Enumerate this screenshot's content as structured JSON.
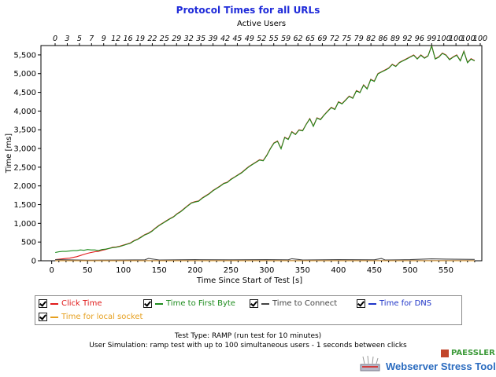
{
  "chart_data": {
    "type": "line",
    "title": "Protocol Times for all URLs",
    "top_axis_label": "Active Users",
    "top_ticks": [
      "0",
      "3",
      "5",
      "7",
      "9",
      "12",
      "16",
      "19",
      "22",
      "25",
      "29",
      "32",
      "35",
      "39",
      "42",
      "45",
      "49",
      "52",
      "55",
      "59",
      "62",
      "65",
      "69",
      "72",
      "75",
      "79",
      "82",
      "86",
      "89",
      "92",
      "96",
      "99",
      "100",
      "100",
      "100",
      "100"
    ],
    "xlabel": "Time Since Start of Test [s]",
    "ylabel": "Time [ms]",
    "xlim": [
      -15,
      600
    ],
    "ylim": [
      0,
      5750
    ],
    "xticks": [
      0,
      50,
      100,
      150,
      200,
      250,
      300,
      350,
      400,
      450,
      500,
      550
    ],
    "yticks": [
      0,
      500,
      1000,
      1500,
      2000,
      2500,
      3000,
      3500,
      4000,
      4500,
      5000,
      5500
    ],
    "ytick_labels": [
      "0",
      "500",
      "1,000",
      "1,500",
      "2,000",
      "2,500",
      "3,000",
      "3,500",
      "4,000",
      "4,500",
      "5,000",
      "5,500"
    ],
    "grid": false,
    "series": [
      {
        "name": "Click Time",
        "color": "#e01b1b",
        "x": [
          5,
          10,
          15,
          20,
          25,
          30,
          35,
          40,
          45,
          50,
          55,
          60,
          65,
          70,
          75,
          80,
          85,
          90,
          95,
          100,
          105,
          110,
          115,
          120,
          125,
          130,
          135,
          140,
          145,
          150,
          155,
          160,
          165,
          170,
          175,
          180,
          185,
          190,
          195,
          200,
          205,
          210,
          215,
          220,
          225,
          230,
          235,
          240,
          245,
          250,
          255,
          260,
          265,
          270,
          275,
          280,
          285,
          290,
          295,
          300,
          305,
          310,
          315,
          320,
          325,
          330,
          335,
          340,
          345,
          350,
          355,
          360,
          365,
          370,
          375,
          380,
          385,
          390,
          395,
          400,
          405,
          410,
          415,
          420,
          425,
          430,
          435,
          440,
          445,
          450,
          455,
          460,
          465,
          470,
          475,
          480,
          485,
          490,
          495,
          500,
          505,
          510,
          515,
          520,
          525,
          530,
          535,
          540,
          545,
          550,
          555,
          560,
          565,
          570,
          575,
          580,
          585,
          590
        ],
        "values": [
          30,
          40,
          50,
          60,
          70,
          90,
          110,
          140,
          170,
          200,
          220,
          240,
          250,
          280,
          300,
          330,
          360,
          370,
          390,
          420,
          450,
          480,
          540,
          580,
          640,
          700,
          740,
          800,
          880,
          950,
          1010,
          1070,
          1130,
          1180,
          1260,
          1320,
          1400,
          1480,
          1550,
          1580,
          1600,
          1680,
          1740,
          1800,
          1880,
          1940,
          2000,
          2070,
          2100,
          2180,
          2240,
          2300,
          2360,
          2440,
          2520,
          2580,
          2640,
          2700,
          2680,
          2820,
          3000,
          3150,
          3200,
          3000,
          3300,
          3250,
          3450,
          3380,
          3500,
          3480,
          3650,
          3800,
          3600,
          3820,
          3780,
          3900,
          4000,
          4100,
          4050,
          4250,
          4200,
          4300,
          4400,
          4350,
          4550,
          4500,
          4700,
          4600,
          4850,
          4800,
          5000,
          5050,
          5100,
          5150,
          5250,
          5200,
          5300,
          5350,
          5400,
          5450,
          5500,
          5400,
          5500,
          5420,
          5480,
          5750,
          5400,
          5450,
          5550,
          5500,
          5380,
          5450,
          5500,
          5350,
          5600,
          5300,
          5400,
          5350
        ]
      },
      {
        "name": "Time to First Byte",
        "color": "#1e8c1e",
        "x": [
          5,
          10,
          15,
          20,
          25,
          30,
          35,
          40,
          45,
          50,
          55,
          60,
          65,
          70,
          75,
          80,
          85,
          90,
          95,
          100,
          105,
          110,
          115,
          120,
          125,
          130,
          135,
          140,
          145,
          150,
          155,
          160,
          165,
          170,
          175,
          180,
          185,
          190,
          195,
          200,
          205,
          210,
          215,
          220,
          225,
          230,
          235,
          240,
          245,
          250,
          255,
          260,
          265,
          270,
          275,
          280,
          285,
          290,
          295,
          300,
          305,
          310,
          315,
          320,
          325,
          330,
          335,
          340,
          345,
          350,
          355,
          360,
          365,
          370,
          375,
          380,
          385,
          390,
          395,
          400,
          405,
          410,
          415,
          420,
          425,
          430,
          435,
          440,
          445,
          450,
          455,
          460,
          465,
          470,
          475,
          480,
          485,
          490,
          495,
          500,
          505,
          510,
          515,
          520,
          525,
          530,
          535,
          540,
          545,
          550,
          555,
          560,
          565,
          570,
          575,
          580,
          585,
          590
        ],
        "values": [
          220,
          240,
          250,
          250,
          260,
          270,
          270,
          290,
          280,
          300,
          290,
          290,
          270,
          300,
          310,
          330,
          350,
          360,
          380,
          410,
          440,
          470,
          530,
          570,
          630,
          690,
          730,
          790,
          870,
          940,
          1000,
          1060,
          1120,
          1170,
          1250,
          1310,
          1390,
          1470,
          1540,
          1570,
          1590,
          1670,
          1730,
          1790,
          1870,
          1930,
          1990,
          2060,
          2090,
          2170,
          2230,
          2290,
          2350,
          2430,
          2510,
          2570,
          2630,
          2690,
          2670,
          2810,
          2990,
          3140,
          3190,
          2990,
          3290,
          3240,
          3440,
          3370,
          3490,
          3470,
          3640,
          3790,
          3590,
          3810,
          3770,
          3890,
          3990,
          4090,
          4040,
          4240,
          4190,
          4290,
          4390,
          4340,
          4540,
          4490,
          4690,
          4590,
          4840,
          4790,
          4990,
          5040,
          5090,
          5140,
          5240,
          5190,
          5290,
          5340,
          5390,
          5440,
          5490,
          5390,
          5490,
          5410,
          5470,
          5740,
          5390,
          5440,
          5540,
          5490,
          5370,
          5440,
          5490,
          5340,
          5590,
          5290,
          5390,
          5340
        ]
      },
      {
        "name": "Time to Connect",
        "color": "#444444",
        "x": [
          5,
          50,
          100,
          130,
          135,
          150,
          200,
          250,
          300,
          330,
          335,
          350,
          400,
          450,
          460,
          465,
          500,
          530,
          550,
          590
        ],
        "values": [
          30,
          15,
          20,
          25,
          60,
          20,
          30,
          25,
          30,
          25,
          55,
          20,
          30,
          25,
          60,
          20,
          30,
          50,
          45,
          35
        ]
      },
      {
        "name": "Time for DNS",
        "color": "#1f35c8",
        "x": [
          5,
          50,
          100,
          150,
          200,
          250,
          300,
          350,
          400,
          450,
          500,
          550,
          590
        ],
        "values": [
          5,
          5,
          5,
          5,
          5,
          5,
          5,
          5,
          5,
          5,
          5,
          5,
          5
        ]
      },
      {
        "name": "Time for local socket",
        "color": "#e6a020",
        "x": [
          5,
          50,
          100,
          150,
          200,
          250,
          300,
          350,
          400,
          450,
          500,
          550,
          590
        ],
        "values": [
          2,
          2,
          2,
          2,
          2,
          2,
          2,
          2,
          2,
          2,
          2,
          2,
          2
        ]
      }
    ]
  },
  "legend": {
    "items": [
      {
        "label": "Click Time",
        "color": "#e01b1b"
      },
      {
        "label": "Time to First Byte",
        "color": "#1e8c1e"
      },
      {
        "label": "Time to Connect",
        "color": "#444444"
      },
      {
        "label": "Time for DNS",
        "color": "#1f35c8"
      },
      {
        "label": "Time for local socket",
        "color": "#e6a020"
      }
    ]
  },
  "info": {
    "test_type": "Test Type: RAMP (run test for 10 minutes)",
    "simulation": "User Simulation: ramp test with up to 100 simultaneous users - 1 seconds between clicks"
  },
  "brand": {
    "company": "PAESSLER",
    "product": "Webserver Stress Tool"
  }
}
